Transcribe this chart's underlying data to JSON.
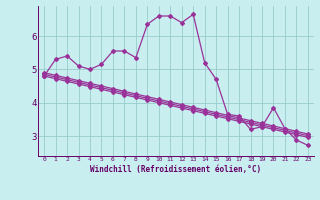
{
  "xlabel": "Windchill (Refroidissement éolien,°C)",
  "bg_color": "#c8eef0",
  "line_color": "#993399",
  "grid_color": "#99cccc",
  "axis_color": "#660066",
  "xlim": [
    -0.5,
    23.5
  ],
  "ylim": [
    2.4,
    6.9
  ],
  "yticks": [
    3,
    4,
    5,
    6
  ],
  "xticks": [
    0,
    1,
    2,
    3,
    4,
    5,
    6,
    7,
    8,
    9,
    10,
    11,
    12,
    13,
    14,
    15,
    16,
    17,
    18,
    19,
    20,
    21,
    22,
    23
  ],
  "series1": [
    4.8,
    5.3,
    5.4,
    5.1,
    5.0,
    5.15,
    5.55,
    5.55,
    5.35,
    6.35,
    6.6,
    6.6,
    6.4,
    6.65,
    5.2,
    4.7,
    3.65,
    3.6,
    3.2,
    3.28,
    3.85,
    3.22,
    2.88,
    2.72
  ],
  "trend1": [
    4.8,
    4.72,
    4.64,
    4.56,
    4.48,
    4.4,
    4.32,
    4.24,
    4.16,
    4.08,
    4.0,
    3.92,
    3.84,
    3.76,
    3.68,
    3.6,
    3.52,
    3.44,
    3.36,
    3.28,
    3.2,
    3.12,
    3.04,
    2.96
  ],
  "trend2": [
    4.85,
    4.77,
    4.69,
    4.61,
    4.53,
    4.45,
    4.37,
    4.29,
    4.21,
    4.13,
    4.05,
    3.97,
    3.89,
    3.81,
    3.73,
    3.65,
    3.57,
    3.49,
    3.41,
    3.33,
    3.25,
    3.17,
    3.09,
    3.01
  ],
  "trend3": [
    4.9,
    4.82,
    4.74,
    4.66,
    4.58,
    4.5,
    4.42,
    4.34,
    4.26,
    4.18,
    4.1,
    4.02,
    3.94,
    3.86,
    3.78,
    3.7,
    3.62,
    3.54,
    3.46,
    3.38,
    3.3,
    3.22,
    3.14,
    3.06
  ]
}
